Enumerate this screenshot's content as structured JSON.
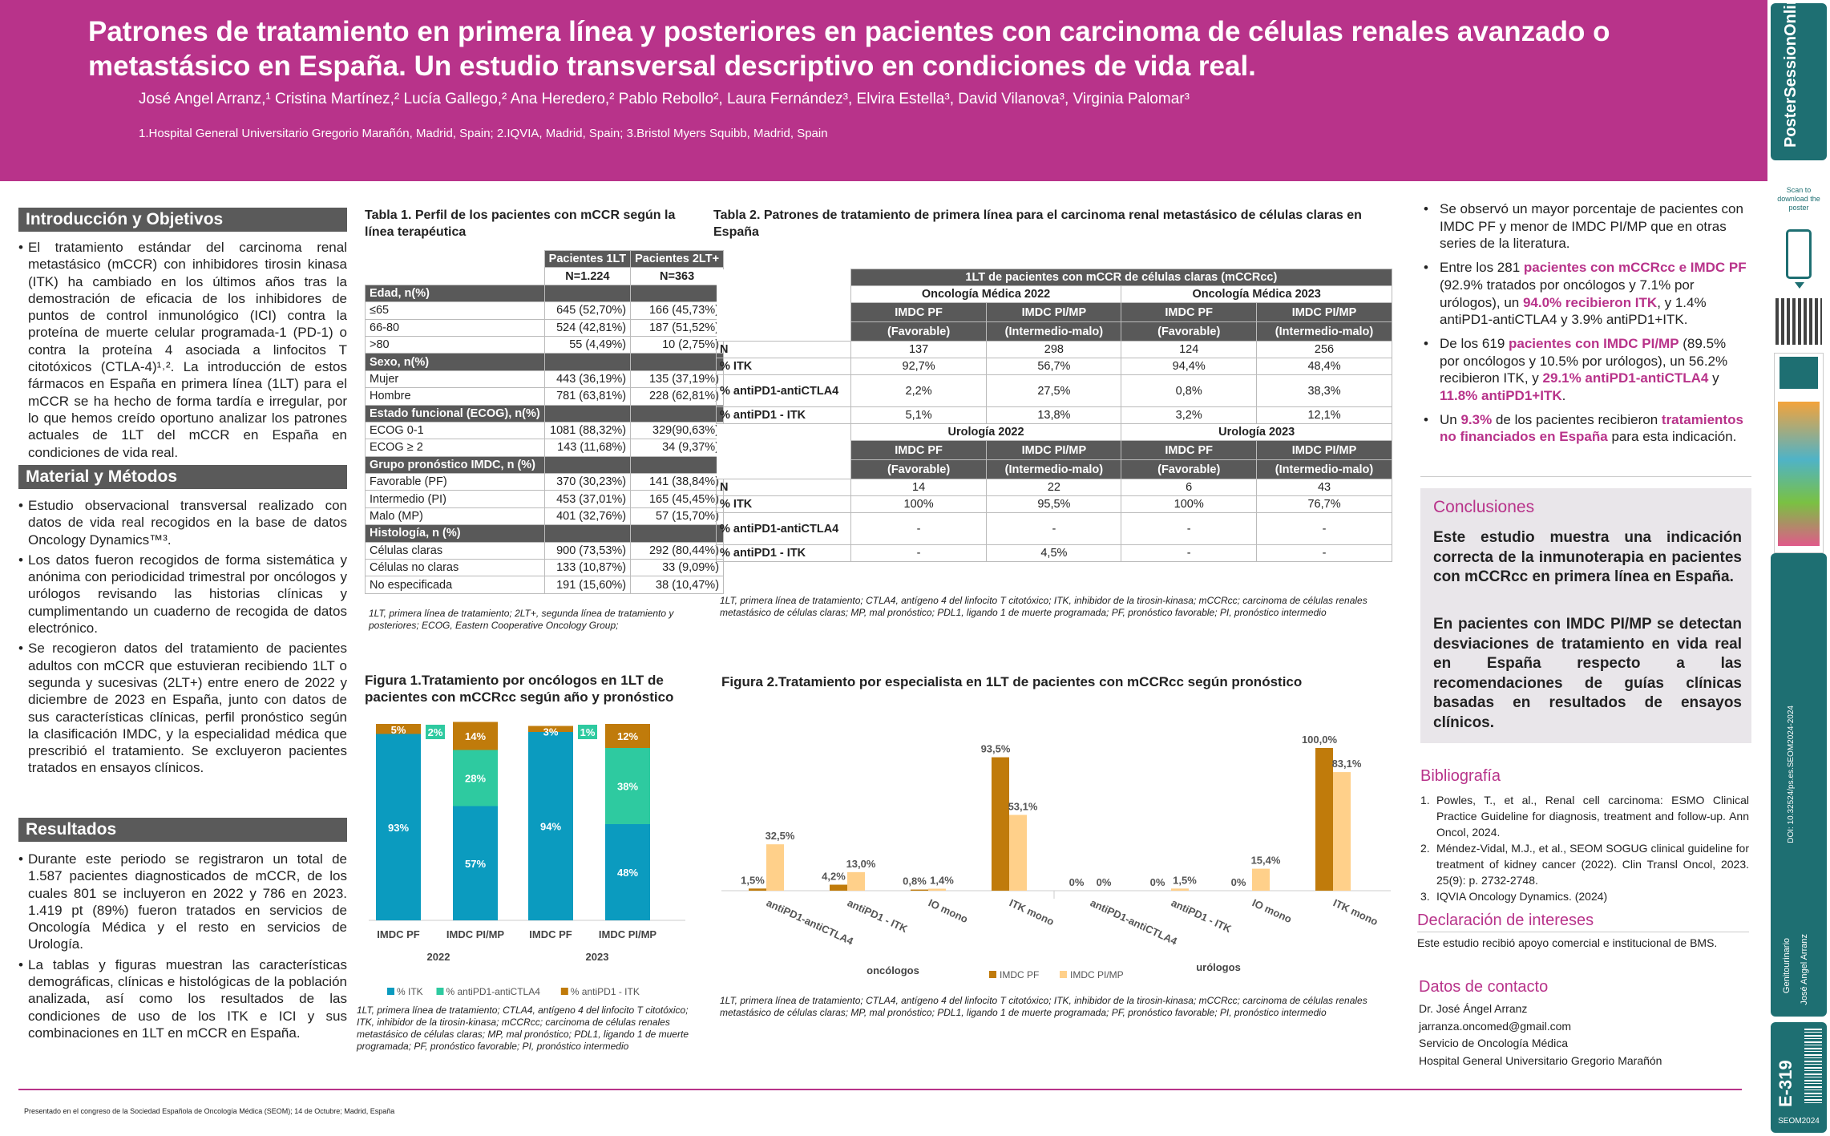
{
  "header": {
    "title": "Patrones de tratamiento en primera línea y posteriores en pacientes con carcinoma de células renales avanzado o metastásico en España. Un estudio transversal descriptivo en condiciones de vida real.",
    "authors": "José Angel Arranz,¹ Cristina Martínez,² Lucía Gallego,² Ana Heredero,² Pablo Rebollo², Laura Fernández³, Elvira Estella³, David Vilanova³, Virginia Palomar³",
    "affiliations": "1.Hospital General Universitario Gregorio Marañón, Madrid, Spain; 2.IQVIA, Madrid, Spain; 3.Bristol Myers Squibb, Madrid, Spain"
  },
  "sidebar": {
    "brand": "PosterSessionOnline",
    "scan": "Scan to download the poster",
    "doi": "DOI: 10.32524/ps.es.SEOM2024-2024",
    "category": "Genitourinario",
    "author": "José Angel Arranz",
    "id": "E-319",
    "congress": "SEOM2024"
  },
  "intro": {
    "heading": "Introducción y Objetivos",
    "text": "El tratamiento estándar del carcinoma renal metastásico (mCCR) con inhibidores tirosin kinasa (ITK) ha cambiado en los últimos años tras la demostración de eficacia de los inhibidores de puntos de control inmunológico (ICI) contra la proteína de muerte celular programada-1 (PD-1) o contra la proteína 4 asociada a linfocitos T citotóxicos (CTLA-4)¹˒². La introducción de estos fármacos en España en primera línea (1LT) para el mCCR se ha hecho de forma tardía e irregular, por lo que hemos creído oportuno analizar los patrones actuales de 1LT del mCCR en España en condiciones de vida real."
  },
  "methods": {
    "heading": "Material y Métodos",
    "items": [
      "Estudio observacional transversal realizado con datos de vida real recogidos en la base de datos Oncology Dynamics™³.",
      "Los datos fueron recogidos de forma sistemática y anónima con periodicidad trimestral por oncólogos y urólogos revisando las historias clínicas y cumplimentando un cuaderno de recogida de datos electrónico.",
      "Se recogieron datos del tratamiento de pacientes adultos con mCCR que estuvieran recibiendo 1LT o segunda y sucesivas (2LT+) entre enero de 2022 y diciembre de 2023 en España, junto con datos de sus características clínicas, perfil pronóstico según la clasificación IMDC, y la especialidad médica que prescribió el tratamiento. Se excluyeron pacientes tratados en ensayos clínicos."
    ]
  },
  "results": {
    "heading": "Resultados",
    "items": [
      "Durante este periodo se registraron un total de 1.587 pacientes diagnosticados de mCCR, de los cuales 801 se incluyeron en 2022 y 786 en 2023. 1.419 pt (89%) fueron tratados en servicios de Oncología Médica y el resto en servicios de Urología.",
      "La tablas y figuras muestran las características demográficas, clínicas e histológicas de la población analizada, así como los resultados de las condiciones de uso de los ITK e ICI y sus combinaciones en 1LT en mCCR en España."
    ]
  },
  "table1": {
    "caption": "Tabla 1. Perfil de los pacientes con mCCR según la línea terapéutica",
    "col1": "Pacientes 1LT",
    "col2": "Pacientes 2LT+",
    "n1": "N=1.224",
    "n2": "N=363",
    "groups": [
      {
        "name": "Edad, n(%)",
        "rows": [
          [
            "≤65",
            "645 (52,70%)",
            "166 (45,73%)"
          ],
          [
            "66-80",
            "524 (42,81%)",
            "187 (51,52%)"
          ],
          [
            ">80",
            "55 (4,49%)",
            "10 (2,75%)"
          ]
        ]
      },
      {
        "name": "Sexo, n(%)",
        "rows": [
          [
            "Mujer",
            "443 (36,19%)",
            "135 (37,19%)"
          ],
          [
            "Hombre",
            "781 (63,81%)",
            "228 (62,81%)"
          ]
        ]
      },
      {
        "name": "Estado funcional (ECOG), n(%)",
        "rows": [
          [
            "ECOG 0-1",
            "1081 (88,32%)",
            "329(90,63%)"
          ],
          [
            "ECOG ≥ 2",
            "143 (11,68%)",
            "34 (9,37%)"
          ]
        ]
      },
      {
        "name": "Grupo pronóstico IMDC, n (%)",
        "rows": [
          [
            "Favorable (PF)",
            "370 (30,23%)",
            "141 (38,84%)"
          ],
          [
            "Intermedio (PI)",
            "453 (37,01%)",
            "165 (45,45%)"
          ],
          [
            "Malo (MP)",
            "401 (32,76%)",
            "57 (15,70%)"
          ]
        ]
      },
      {
        "name": "Histología, n (%)",
        "rows": [
          [
            "Células claras",
            "900 (73,53%)",
            "292 (80,44%)"
          ],
          [
            "Células no claras",
            "133 (10,87%)",
            "33 (9,09%)"
          ],
          [
            "No especificada",
            "191 (15,60%)",
            "38 (10,47%)"
          ]
        ]
      }
    ],
    "note": "1LT, primera línea de tratamiento; 2LT+, segunda línea de tratamiento y posteriores; ECOG, Eastern Cooperative Oncology Group;"
  },
  "table2": {
    "caption": "Tabla 2. Patrones de tratamiento de primera línea para el carcinoma renal metastásico de células claras en España",
    "title": "1LT de pacientes con mCCR de células claras (mCCRcc)",
    "blocks": [
      {
        "left": "Oncología Médica 2022",
        "right": "Oncología Médica 2023",
        "rows": [
          [
            "N",
            "137",
            "298",
            "124",
            "256"
          ],
          [
            "% ITK",
            "92,7%",
            "56,7%",
            "94,4%",
            "48,4%"
          ],
          [
            "% antiPD1-antiCTLA4",
            "2,2%",
            "27,5%",
            "0,8%",
            "38,3%"
          ],
          [
            "% antiPD1 - ITK",
            "5,1%",
            "13,8%",
            "3,2%",
            "12,1%"
          ]
        ]
      },
      {
        "left": "Urología 2022",
        "right": "Urología 2023",
        "rows": [
          [
            "N",
            "14",
            "22",
            "6",
            "43"
          ],
          [
            "% ITK",
            "100%",
            "95,5%",
            "100%",
            "76,7%"
          ],
          [
            "% antiPD1-antiCTLA4",
            "-",
            "-",
            "-",
            "-"
          ],
          [
            "% antiPD1 - ITK",
            "-",
            "4,5%",
            "-",
            "-"
          ]
        ]
      }
    ],
    "sub": [
      "IMDC PF",
      "(Favorable)",
      "IMDC PI/MP",
      "(Intermedio-malo)"
    ],
    "note": "1LT, primera línea de tratamiento; CTLA4, antígeno 4 del linfocito T citotóxico; ITK, inhibidor de la tirosin-kinasa; mCCRcc; carcinoma de células renales metastásico de células claras; MP, mal pronóstico; PDL1, ligando 1 de muerte programada; PF, pronóstico favorable; PI, pronóstico intermedio"
  },
  "fig1": {
    "caption": "Figura 1.Tratamiento por oncólogos en 1LT de pacientes con mCCRcc según año y pronóstico",
    "note": "1LT, primera línea de tratamiento; CTLA4, antígeno 4 del linfocito T citotóxico; ITK, inhibidor de la tirosin-kinasa; mCCRcc; carcinoma de células renales metastásico de células claras; MP, mal pronóstico; PDL1, ligando 1 de muerte programada; PF, pronóstico favorable; PI, pronóstico intermedio"
  },
  "fig2": {
    "caption": "Figura 2.Tratamiento por especialista en 1LT de pacientes con mCCRcc según pronóstico",
    "note": "1LT, primera línea de tratamiento; CTLA4, antígeno 4 del linfocito T citotóxico; ITK, inhibidor de la tirosin-kinasa; mCCRcc; carcinoma de células renales metastásico de células claras; MP, mal pronóstico; PDL1, ligando 1 de muerte programada; PF, pronóstico favorable; PI, pronóstico intermedio"
  },
  "chart_data": [
    {
      "type": "bar",
      "stacked": true,
      "groups": [
        "2022",
        "2023"
      ],
      "categories": [
        "IMDC PF",
        "IMDC PI/MP",
        "IMDC PF",
        "IMDC PI/MP"
      ],
      "series": [
        {
          "name": "% ITK",
          "color": "#0b9bbf",
          "values": [
            93,
            57,
            94,
            48
          ],
          "labels": [
            "93%",
            "57%",
            "94%",
            "48%"
          ]
        },
        {
          "name": "% antiPD1-antiCTLA4",
          "color": "#2ecaa0",
          "values": [
            2,
            28,
            1,
            38
          ],
          "labels": [
            "2%",
            "28%",
            "1%",
            "38%"
          ]
        },
        {
          "name": "% antiPD1 - ITK",
          "color": "#c07b0b",
          "values": [
            5,
            14,
            3,
            12
          ],
          "labels": [
            "5%",
            "14%",
            "3%",
            "12%"
          ]
        }
      ],
      "ylim": [
        0,
        100
      ]
    },
    {
      "type": "bar",
      "groups": [
        "oncólogos",
        "urólogos"
      ],
      "categories": [
        "antiPD1-antiCTLA4",
        "antiPD1 - ITK",
        "IO mono",
        "ITK mono",
        "antiPD1-antiCTLA4",
        "antiPD1 - ITK",
        "IO mono",
        "ITK mono"
      ],
      "series": [
        {
          "name": "IMDC PF",
          "color": "#c07b0b",
          "values": [
            1.5,
            4.2,
            0.8,
            93.5,
            0,
            0,
            0,
            100
          ],
          "labels": [
            "1,5%",
            "4,2%",
            "0,8%",
            "93,5%",
            "0%",
            "0%",
            "0%",
            "100,0%"
          ]
        },
        {
          "name": "IMDC PI/MP",
          "color": "#ffd08a",
          "values": [
            32.5,
            13.0,
            1.4,
            53.1,
            0,
            1.5,
            15.4,
            83.1
          ],
          "labels": [
            "32,5%",
            "13,0%",
            "1,4%",
            "53,1%",
            "0%",
            "1,5%",
            "15,4%",
            "83,1%"
          ]
        }
      ],
      "ylim": [
        0,
        100
      ]
    }
  ],
  "right": {
    "b1": "Se observó un mayor porcentaje de pacientes con IMDC PF y menor de IMDC PI/MP que en otras series de la literatura.",
    "b2a": "Entre los 281 ",
    "b2b": "pacientes con mCCRcc e IMDC PF",
    "b2c": " (92.9% tratados por oncólogos y 7.1% por urólogos), un ",
    "b2d": "94.0% recibieron ITK",
    "b2e": ", y 1.4% antiPD1-antiCTLA4 y 3.9% antiPD1+ITK.",
    "b3a": "De los 619 ",
    "b3b": "pacientes con IMDC PI/MP",
    "b3c": " (89.5% por oncólogos y 10.5% por urólogos), un 56.2% recibieron ITK, y ",
    "b3d": "29.1% antiPD1-antiCTLA4",
    "b3e": " y ",
    "b3f": "11.8% antiPD1+ITK",
    "b3g": ".",
    "b4a": "Un ",
    "b4b": "9.3%",
    "b4c": " de los pacientes recibieron ",
    "b4d": "tratamientos no financiados en España",
    "b4e": " para esta indicación."
  },
  "conclusions": {
    "heading": "Conclusiones",
    "p1": "Este estudio muestra una indicación correcta de la inmunoterapia en pacientes con mCCRcc en primera línea en España.",
    "p2": "En pacientes con IMDC PI/MP se detectan desviaciones de tratamiento en vida real en España respecto a las recomendaciones de guías clínicas basadas en resultados de ensayos clínicos."
  },
  "biblio": {
    "heading": "Bibliografía",
    "items": [
      "Powles, T., et al., Renal cell carcinoma: ESMO Clinical Practice Guideline for diagnosis, treatment and follow-up. Ann Oncol, 2024.",
      "Méndez-Vidal, M.J., et al., SEOM SOGUG clinical guideline for treatment of kidney cancer (2022). Clin Transl Oncol, 2023. 25(9): p. 2732-2748.",
      "IQVIA Oncology Dynamics. (2024)"
    ]
  },
  "interests": {
    "heading": "Declaración de intereses",
    "text": "Este estudio recibió apoyo comercial e institucional de BMS."
  },
  "contact": {
    "heading": "Datos de contacto",
    "lines": [
      "Dr. José Ángel Arranz",
      "jarranza.oncomed@gmail.com",
      "Servicio de Oncología Médica",
      "Hospital General Universitario Gregorio Marañón"
    ]
  },
  "footer": "Presentado en el congreso de la Sociedad Española de Oncología Médica (SEOM); 14 de Octubre; Madrid, España"
}
